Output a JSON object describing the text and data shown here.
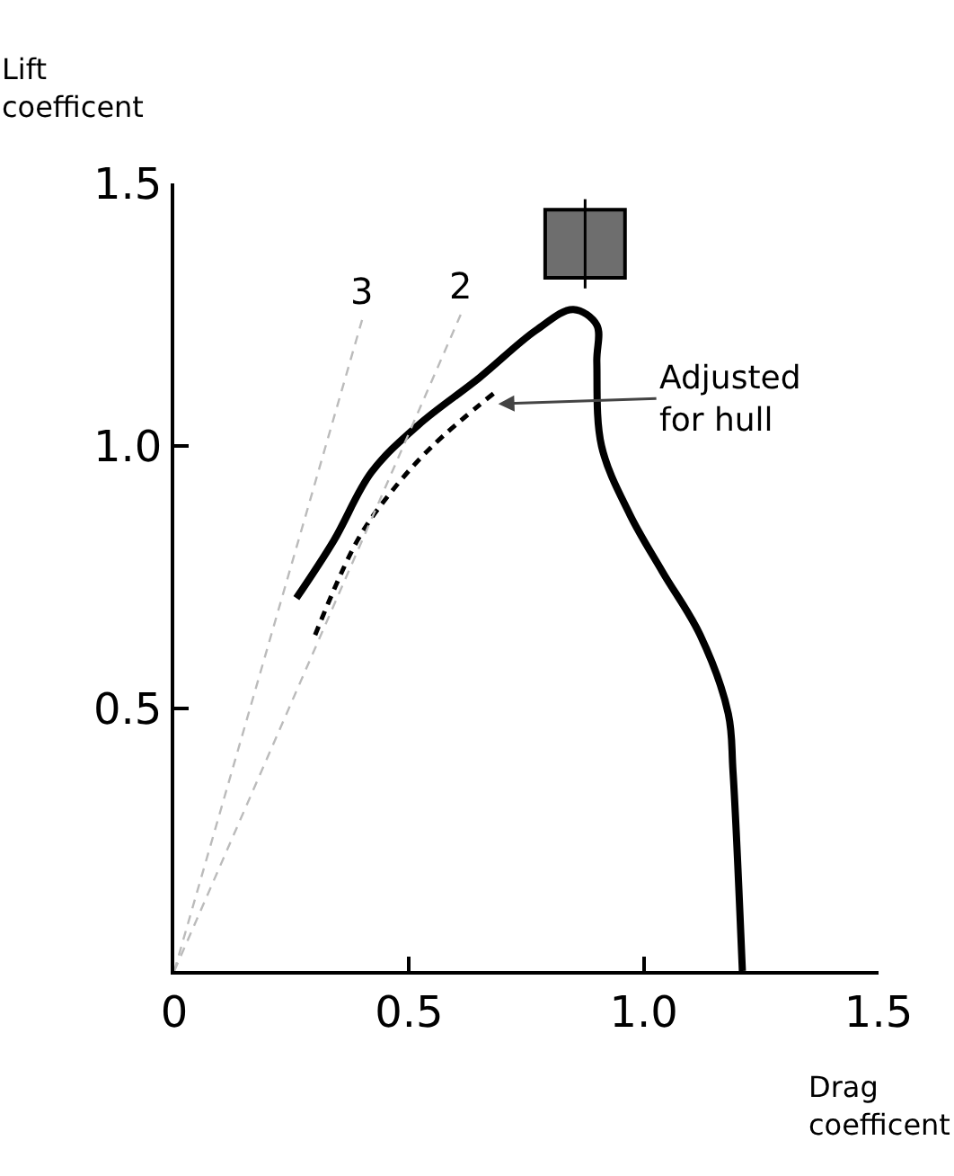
{
  "chart_data": {
    "type": "line",
    "xlabel": "Drag\ncoefficent",
    "ylabel": "Lift\ncoefficent",
    "xlim": [
      0,
      1.5
    ],
    "ylim": [
      0,
      1.5
    ],
    "xticks": [
      0,
      0.5,
      {
        "value": 1,
        "label": "1.0"
      },
      1.5
    ],
    "yticks": [
      0.5,
      {
        "value": 1,
        "label": "1.0"
      },
      1.5
    ],
    "grid": false,
    "legend": false,
    "marker": "none",
    "series": [
      {
        "color": "#000000",
        "line_style": "solid",
        "x": [
          0.26,
          0.34,
          0.42,
          0.52,
          0.65,
          0.77,
          0.85,
          0.9,
          0.9,
          0.91,
          0.97,
          1.04,
          1.12,
          1.18,
          1.19,
          1.21
        ],
        "values": [
          0.71,
          0.82,
          0.95,
          1.04,
          1.13,
          1.22,
          1.26,
          1.23,
          1.16,
          1.0,
          0.87,
          0.76,
          0.64,
          0.49,
          0.38,
          0
        ]
      },
      {
        "color": "#000000",
        "line_style": "dashed",
        "x": [
          0.3,
          0.39,
          0.46,
          0.55,
          0.68
        ],
        "values": [
          0.64,
          0.82,
          0.91,
          1.0,
          1.1
        ]
      },
      {
        "name": "3",
        "color": "#bbbbbb",
        "line_style": "dashed",
        "x": [
          0,
          0.4
        ],
        "values": [
          0,
          1.24
        ]
      },
      {
        "name": "2",
        "color": "#bbbbbb",
        "line_style": "dashed",
        "x": [
          0,
          0.61
        ],
        "values": [
          0,
          1.25
        ]
      },
      {
        "type": "bar",
        "color": "#6e6e6e",
        "x": [
          0.875
        ],
        "base": [
          1.32
        ],
        "values": [
          0.13
        ],
        "errors": [
          [
            1.3,
            1.47
          ]
        ]
      }
    ],
    "annotations": [
      {
        "text": "Adjusted\nfor hull",
        "x": 0.69,
        "y": 1.08
      }
    ]
  }
}
